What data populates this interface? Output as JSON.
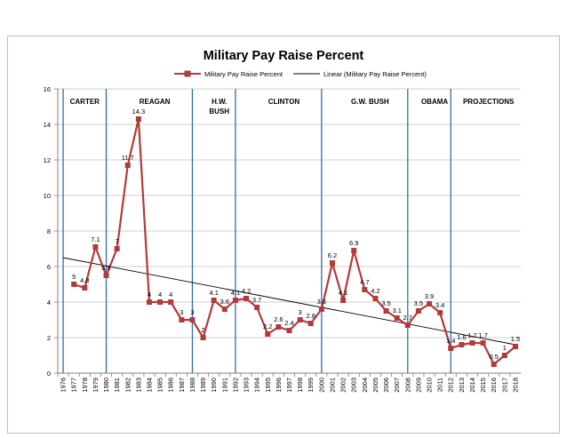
{
  "chart_data": {
    "type": "line",
    "title": "Military Pay Raise Percent",
    "legend": {
      "position": "top",
      "entries": [
        {
          "name": "Military Pay Raise Percent",
          "style": "line-with-square-markers",
          "color": "#b23a3a"
        },
        {
          "name": "Linear (Military Pay Raise Percent)",
          "style": "line",
          "color": "#000000"
        }
      ]
    },
    "xlabel": "",
    "ylabel": "",
    "ylim": [
      0,
      16
    ],
    "yticks": [
      "0",
      "2",
      "4",
      "6",
      "8",
      "10",
      "12",
      "14",
      "16"
    ],
    "gridlines": "horizontal",
    "categories": [
      "1976",
      "1977",
      "1978",
      "1979",
      "1980",
      "1981",
      "1982",
      "1983",
      "1984",
      "1985",
      "1986",
      "1987",
      "1988",
      "1989",
      "1990",
      "1991",
      "1992",
      "1993",
      "1994",
      "1995",
      "1996",
      "1997",
      "1998",
      "1999",
      "2000",
      "2001",
      "2002",
      "2003",
      "2004",
      "2005",
      "2006",
      "2007",
      "2008",
      "2009",
      "2010",
      "2011",
      "2012",
      "2013",
      "2014",
      "2015",
      "2016",
      "2017",
      "2018"
    ],
    "series": [
      {
        "name": "Military Pay Raise Percent",
        "color": "#b23a3a",
        "x": [
          "1977",
          "1978",
          "1979",
          "1980",
          "1981",
          "1982",
          "1983",
          "1984",
          "1985",
          "1986",
          "1987",
          "1988",
          "1989",
          "1990",
          "1991",
          "1992",
          "1993",
          "1994",
          "1995",
          "1996",
          "1997",
          "1998",
          "1999",
          "2000",
          "2001",
          "2002",
          "2003",
          "2004",
          "2005",
          "2006",
          "2007",
          "2008",
          "2009",
          "2010",
          "2011",
          "2012",
          "2013",
          "2014",
          "2015",
          "2016",
          "2017",
          "2018"
        ],
        "values": [
          5,
          4.8,
          7.1,
          5.5,
          7,
          11.7,
          14.3,
          4,
          4,
          4,
          3,
          3,
          2,
          4.1,
          3.6,
          4.1,
          4.2,
          3.7,
          2.2,
          2.6,
          2.4,
          3,
          2.8,
          3.6,
          6.2,
          4.1,
          6.9,
          4.7,
          4.2,
          3.5,
          3.1,
          2.7,
          3.5,
          3.9,
          3.4,
          1.4,
          1.6,
          1.7,
          1.7,
          0.5,
          1,
          1.5
        ],
        "labels": [
          "5",
          "4.8",
          "7.1",
          "5.5",
          "7",
          "11.7",
          "14.3",
          "4",
          "4",
          "4",
          "3",
          "3",
          "2",
          "4.1",
          "3.6",
          "4.1",
          "4.2",
          "3.7",
          "2.2",
          "2.6",
          "2.4",
          "3",
          "2.8",
          "3.6",
          "6.2",
          "4.1",
          "6.9",
          "4.7",
          "4.2",
          "3.5",
          "3.1",
          "2.7",
          "3.5",
          "3.9",
          "3.4",
          "1.4",
          "1.6",
          "1.7",
          "1.7",
          "0.5",
          "1",
          "1.5"
        ]
      },
      {
        "name": "Linear (Military Pay Raise Percent)",
        "color": "#000000",
        "x": [
          "1976",
          "2018"
        ],
        "values": [
          6.5,
          1.6
        ]
      }
    ],
    "eras": [
      {
        "name": "CARTER",
        "lines": [
          "CARTER"
        ],
        "start": "1976",
        "end": "1980"
      },
      {
        "name": "REAGAN",
        "lines": [
          "REAGAN"
        ],
        "start": "1981",
        "end": "1988"
      },
      {
        "name": "H.W. BUSH",
        "lines": [
          "H.W.",
          "BUSH"
        ],
        "start": "1989",
        "end": "1992"
      },
      {
        "name": "CLINTON",
        "lines": [
          "CLINTON"
        ],
        "start": "1993",
        "end": "2000"
      },
      {
        "name": "G.W. BUSH",
        "lines": [
          "G.W. BUSH"
        ],
        "start": "2001",
        "end": "2008"
      },
      {
        "name": "OBAMA",
        "lines": [
          "OBAMA"
        ],
        "start": "2009",
        "end": "2012"
      },
      {
        "name": "PROJECTIONS",
        "lines": [
          "PROJECTIONS"
        ],
        "start": "2013",
        "end": "2018"
      }
    ],
    "era_separators": [
      "1976",
      "1980",
      "1988",
      "1992",
      "2000",
      "2008",
      "2012"
    ],
    "era_separator_color": "#2e6fb0"
  }
}
